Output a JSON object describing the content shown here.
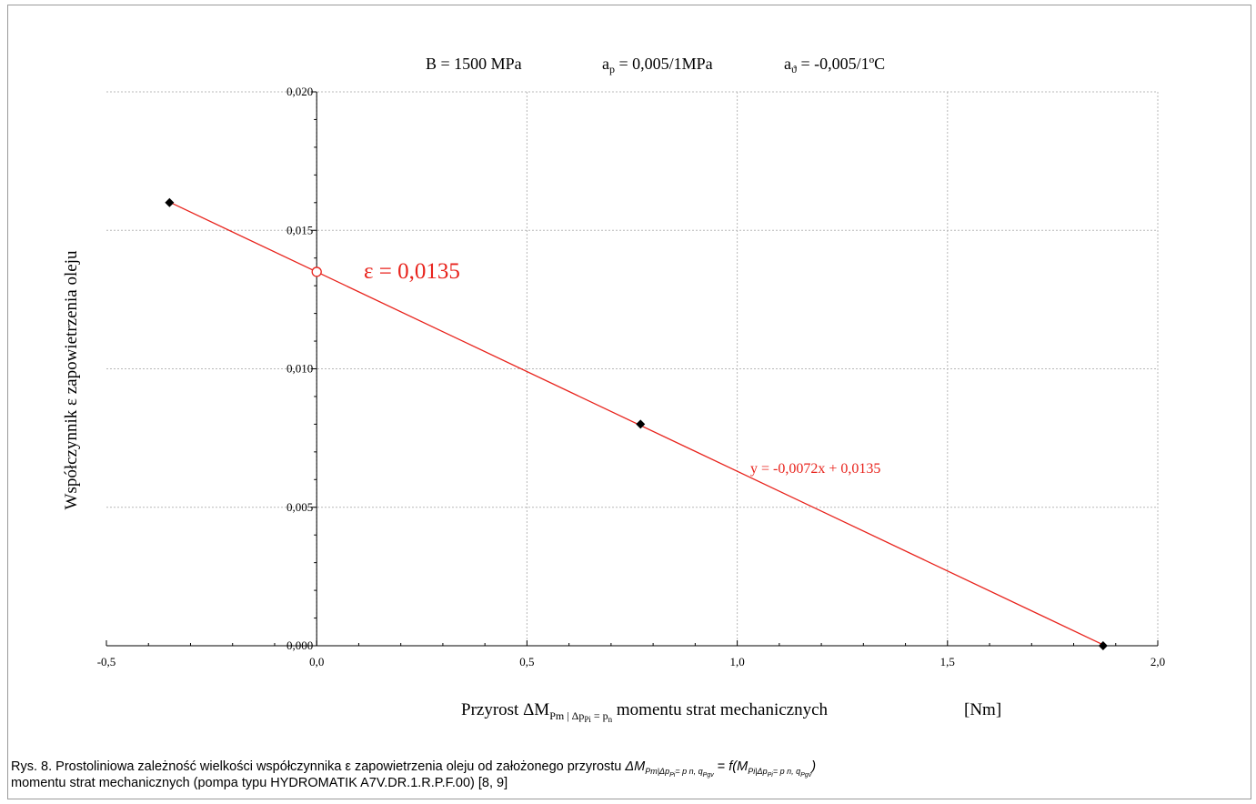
{
  "chart_data": {
    "type": "scatter",
    "params": {
      "b": "B = 1500  MPa",
      "ap_main": "a",
      "ap_sub": "p",
      "ap_rest": " = 0,005/1MPa",
      "at_main": "a",
      "at_sub": "ϑ",
      "at_rest": " = -0,005/1ºC"
    },
    "xlabel": {
      "prefix": "Przyrost  ΔM",
      "sub1": "Pm | ",
      "sub2": "Δp",
      "sub3": "Pi",
      "sub4": " = p",
      "sub5": "n",
      "suffix": " momentu  strat mechanicznych",
      "unit": "[Nm]"
    },
    "ylabel": "Współczynnik ε  zapowietrzenia  oleju",
    "xlim": [
      -0.5,
      2.0
    ],
    "ylim": [
      0.0,
      0.02
    ],
    "x_ticks": [
      -0.5,
      0.0,
      0.5,
      1.0,
      1.5,
      2.0
    ],
    "x_tick_labels": [
      "-0,5",
      "0,0",
      "0,5",
      "1,0",
      "1,5",
      "2,0"
    ],
    "y_ticks": [
      0.0,
      0.005,
      0.01,
      0.015,
      0.02
    ],
    "y_tick_labels": [
      "0,000",
      "0,005",
      "0,010",
      "0,015",
      "0,020"
    ],
    "grid": true,
    "series": [
      {
        "points": [
          {
            "x": -0.35,
            "y": 0.016
          },
          {
            "x": 0.77,
            "y": 0.008
          },
          {
            "x": 1.87,
            "y": 0.0
          }
        ]
      }
    ],
    "trendline": {
      "slope": -0.0072,
      "intercept": 0.0135,
      "x_range": [
        -0.35,
        1.87
      ],
      "equation": "y = -0,0072x + 0,0135"
    },
    "intercept_marker": {
      "x": 0.0,
      "y": 0.0135
    },
    "annotation": "ε = 0,0135",
    "colors": {
      "trend": "#e8231c",
      "points": "#000000",
      "grid": "#b8b8b8"
    }
  },
  "caption": {
    "prefix": "Rys. 8. Prostoliniowa zależność wielkości współczynnika ε zapowietrzenia oleju od założonego przyrostu ",
    "dm": "ΔM",
    "dm_sub": "Pm|Δp",
    "dm_sub_sub": "Pi",
    "dm_sub_tail": "= p",
    "dm_sub_n": "n",
    "dm_sub_q": ", q",
    "dm_sub_q_sub": "Pgv",
    "eq": " = ",
    "f": "f",
    "f_open": "(M",
    "m_sub": "Pi|Δp",
    "m_sub_sub": "Pi",
    "m_sub_tail": "= p",
    "m_sub_n": "n",
    "m_sub_q": ", q",
    "m_sub_q_sub": "Pgv",
    "f_close": ")",
    "line2": "momentu strat mechanicznych (pompa typu HYDROMATIK A7V.DR.1.R.P.F.00) [8, 9]"
  }
}
